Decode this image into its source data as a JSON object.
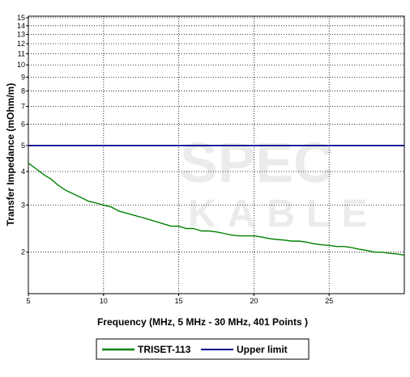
{
  "chart_data": {
    "type": "line",
    "xlabel": "Frequency (MHz, 5 MHz - 30 MHz, 401 Points )",
    "ylabel": "Transfer Impedance (mOhm/m)",
    "x_range": [
      5,
      30
    ],
    "y_range": [
      1.4,
      15.2
    ],
    "y_scale": "log",
    "grid": true,
    "x_ticks": [
      5,
      10,
      15,
      20,
      25
    ],
    "y_ticks": [
      2,
      3,
      4,
      5,
      6,
      7,
      8,
      9,
      10,
      11,
      12,
      13,
      14,
      15
    ],
    "legend_position": "bottom",
    "series": [
      {
        "name": "TRISET-113",
        "color": "#008000",
        "x": [
          5,
          5.5,
          6,
          6.5,
          7,
          7.5,
          8,
          8.5,
          9,
          9.5,
          10,
          10.5,
          11,
          11.5,
          12,
          12.5,
          13,
          13.5,
          14,
          14.5,
          15,
          15.5,
          16,
          16.5,
          17,
          17.5,
          18,
          18.5,
          19,
          19.5,
          20,
          20.5,
          21,
          21.5,
          22,
          22.5,
          23,
          23.5,
          24,
          24.5,
          25,
          25.5,
          26,
          26.5,
          27,
          27.5,
          28,
          28.5,
          29,
          29.5,
          30
        ],
        "y": [
          4.3,
          4.1,
          3.9,
          3.75,
          3.55,
          3.4,
          3.3,
          3.2,
          3.1,
          3.05,
          3.0,
          2.95,
          2.85,
          2.8,
          2.75,
          2.7,
          2.65,
          2.6,
          2.55,
          2.5,
          2.5,
          2.45,
          2.45,
          2.4,
          2.4,
          2.38,
          2.35,
          2.32,
          2.3,
          2.3,
          2.3,
          2.28,
          2.25,
          2.23,
          2.22,
          2.2,
          2.2,
          2.18,
          2.15,
          2.13,
          2.12,
          2.1,
          2.1,
          2.08,
          2.05,
          2.03,
          2.0,
          2.0,
          1.98,
          1.97,
          1.95
        ]
      },
      {
        "name": "Upper limit",
        "color": "#00008b",
        "x": [
          5,
          30
        ],
        "y": [
          5,
          5
        ]
      }
    ]
  }
}
